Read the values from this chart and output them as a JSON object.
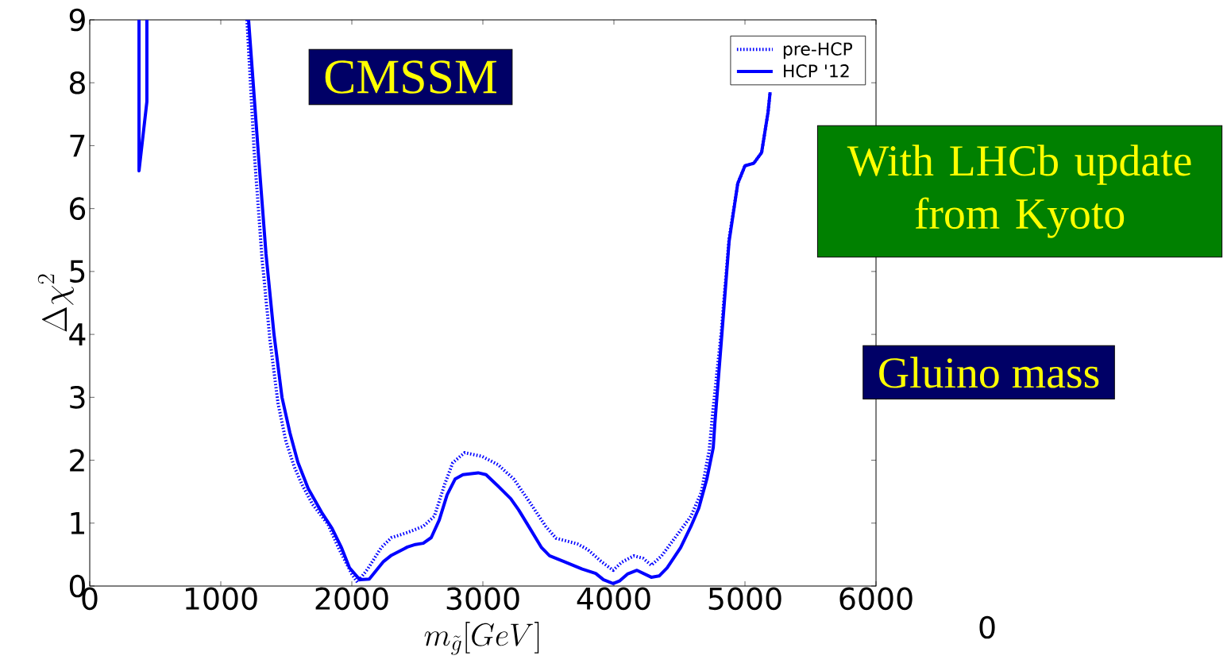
{
  "chart_data": {
    "type": "line",
    "xlabel": "m_{\\tilde{g}}[GeV]",
    "ylabel": "\\Delta\\chi^2",
    "xlim": [
      0,
      6000
    ],
    "ylim": [
      0,
      9
    ],
    "xticks": [
      0,
      1000,
      2000,
      3000,
      4000,
      5000,
      6000
    ],
    "yticks": [
      0,
      1,
      2,
      3,
      4,
      5,
      6,
      7,
      8,
      9
    ],
    "legend": "top right",
    "grid": false,
    "series": [
      {
        "name": "pre-HCP",
        "color": "#0000ff",
        "line_style": "dotted",
        "x": [
          1200,
          1255,
          1315,
          1376,
          1437,
          1497,
          1560,
          1618,
          1700,
          1818,
          1900,
          2000,
          2042,
          2121,
          2224,
          2303,
          2424,
          2545,
          2630,
          2709,
          2770,
          2861,
          2994,
          3115,
          3236,
          3358,
          3479,
          3558,
          3721,
          3800,
          3903,
          3994,
          4061,
          4152,
          4224,
          4285,
          4364,
          4485,
          4588,
          4667,
          4727,
          4758,
          4818,
          4879,
          4945,
          5000,
          5067,
          5127,
          5176,
          5192
        ],
        "values": [
          9,
          6.9,
          5.2,
          3.9,
          2.9,
          2.3,
          1.9,
          1.62,
          1.3,
          0.98,
          0.6,
          0.19,
          0.06,
          0.27,
          0.61,
          0.77,
          0.85,
          0.95,
          1.11,
          1.62,
          1.96,
          2.12,
          2.06,
          1.93,
          1.7,
          1.33,
          0.95,
          0.76,
          0.67,
          0.58,
          0.39,
          0.25,
          0.38,
          0.48,
          0.44,
          0.33,
          0.48,
          0.82,
          1.11,
          1.49,
          2.16,
          2.84,
          4.02,
          5.53,
          6.4,
          6.68,
          6.72,
          6.89,
          7.53,
          7.85
        ]
      },
      {
        "name": "HCP '12",
        "color": "#0000ff",
        "line_style": "solid",
        "x": [
          376,
          376,
          436,
          436,
          null,
          1212,
          1285,
          1345,
          1406,
          1467,
          1527,
          1588,
          1667,
          1770,
          1848,
          1921,
          1982,
          2061,
          2133,
          2242,
          2303,
          2424,
          2485,
          2545,
          2606,
          2667,
          2727,
          2788,
          2848,
          2964,
          3024,
          3115,
          3212,
          3273,
          3358,
          3448,
          3509,
          3618,
          3758,
          3861,
          3921,
          3994,
          4042,
          4103,
          4176,
          4285,
          4345,
          4406,
          4509,
          4588,
          4648,
          4709,
          4758,
          4770,
          4818,
          4879,
          4945,
          5000,
          5067,
          5127,
          5176,
          5192
        ],
        "values": [
          9,
          6.6,
          7.7,
          9,
          null,
          9,
          6.92,
          5.28,
          4.0,
          3.0,
          2.44,
          1.97,
          1.55,
          1.17,
          0.92,
          0.61,
          0.29,
          0.1,
          0.11,
          0.39,
          0.49,
          0.62,
          0.66,
          0.68,
          0.77,
          1.05,
          1.45,
          1.7,
          1.77,
          1.8,
          1.77,
          1.59,
          1.39,
          1.21,
          0.92,
          0.61,
          0.48,
          0.39,
          0.27,
          0.2,
          0.1,
          0.04,
          0.08,
          0.19,
          0.25,
          0.14,
          0.16,
          0.29,
          0.61,
          0.95,
          1.24,
          1.7,
          2.2,
          2.58,
          3.85,
          5.48,
          6.4,
          6.68,
          6.72,
          6.89,
          7.53,
          7.85
        ]
      }
    ],
    "annotations": [
      "CMSSM",
      "With LHCb update from Kyoto",
      "Gluino mass",
      "0"
    ]
  }
}
